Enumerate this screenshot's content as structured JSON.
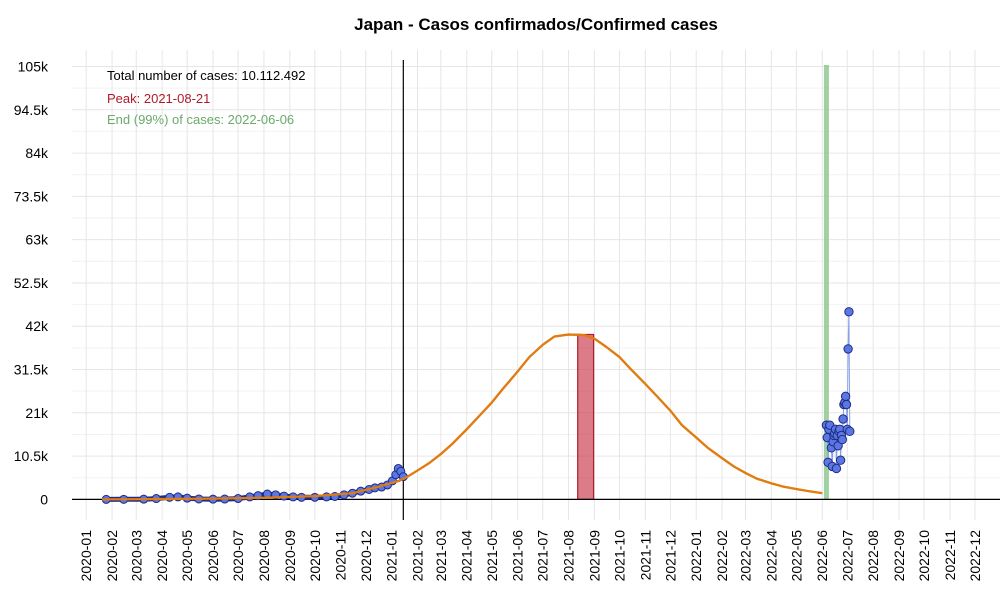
{
  "chart_data": {
    "type": "line",
    "title": "Japan - Casos confirmados/Confirmed cases",
    "xlabel": "",
    "ylabel": "",
    "x_axis": {
      "type": "date",
      "range": [
        "2019-12-15",
        "2022-12-31"
      ],
      "tick_labels": [
        "2020-01",
        "2020-02",
        "2020-03",
        "2020-04",
        "2020-05",
        "2020-06",
        "2020-07",
        "2020-08",
        "2020-09",
        "2020-10",
        "2020-11",
        "2020-12",
        "2021-01",
        "2021-02",
        "2021-03",
        "2021-04",
        "2021-05",
        "2021-06",
        "2021-07",
        "2021-08",
        "2021-09",
        "2021-10",
        "2021-11",
        "2021-12",
        "2022-01",
        "2022-02",
        "2022-03",
        "2022-04",
        "2022-05",
        "2022-06",
        "2022-07",
        "2022-08",
        "2022-09",
        "2022-10",
        "2022-11",
        "2022-12"
      ]
    },
    "y_axis": {
      "range": [
        -5000,
        109000
      ],
      "ticks": [
        0,
        10500,
        21000,
        31500,
        42000,
        52500,
        63000,
        73500,
        84000,
        94500,
        105000
      ],
      "tick_labels": [
        "0",
        "10.5k",
        "21k",
        "31.5k",
        "42k",
        "52.5k",
        "63k",
        "73.5k",
        "84k",
        "94.5k",
        "105k"
      ]
    },
    "grid": true,
    "annotations": {
      "total": "Total number of cases: 10.112.492",
      "peak": "Peak: 2021-08-21",
      "end": "End (99%) of cases: 2022-06-06"
    },
    "colors": {
      "fit_line": "#e07c10",
      "peak_band": "#cc4455",
      "end_line": "#8fc98f",
      "points_fill": "#5b78e0",
      "points_stroke": "#1f2a8a",
      "recent_line": "#8aa0e8",
      "today_line": "#000000",
      "grid": "#e6e6e6"
    },
    "today_date": "2021-01-15",
    "peak_band": {
      "start": "2021-08-12",
      "end": "2021-08-31",
      "value": 40000
    },
    "end_date": "2022-06-06",
    "fit_curve": {
      "x": [
        "2020-01-20",
        "2020-04-01",
        "2020-06-01",
        "2020-08-01",
        "2020-10-01",
        "2020-11-15",
        "2020-12-15",
        "2021-01-10",
        "2021-01-20",
        "2021-02-01",
        "2021-02-15",
        "2021-03-01",
        "2021-03-15",
        "2021-04-01",
        "2021-04-15",
        "2021-05-01",
        "2021-05-15",
        "2021-06-01",
        "2021-06-15",
        "2021-07-01",
        "2021-07-15",
        "2021-08-01",
        "2021-08-15",
        "2021-08-21",
        "2021-09-01",
        "2021-09-15",
        "2021-10-01",
        "2021-10-15",
        "2021-11-01",
        "2021-11-15",
        "2021-12-01",
        "2021-12-15",
        "2022-01-01",
        "2022-01-15",
        "2022-02-01",
        "2022-02-15",
        "2022-03-01",
        "2022-03-15",
        "2022-04-01",
        "2022-04-15",
        "2022-05-01",
        "2022-05-15",
        "2022-06-01"
      ],
      "y": [
        0,
        100,
        200,
        400,
        800,
        1500,
        3000,
        4500,
        5500,
        7000,
        8800,
        11000,
        13500,
        17000,
        20000,
        23500,
        27000,
        31000,
        34500,
        37500,
        39500,
        40000,
        39900,
        39800,
        39000,
        37000,
        34500,
        31500,
        28000,
        25000,
        21500,
        18000,
        15000,
        12500,
        10000,
        8000,
        6400,
        5000,
        3900,
        3100,
        2500,
        2000,
        1500
      ]
    },
    "historical_series": {
      "x": [
        "2020-01-25",
        "2020-02-15",
        "2020-03-10",
        "2020-03-25",
        "2020-04-10",
        "2020-04-20",
        "2020-05-01",
        "2020-05-15",
        "2020-06-01",
        "2020-06-15",
        "2020-07-01",
        "2020-07-15",
        "2020-07-25",
        "2020-08-05",
        "2020-08-15",
        "2020-08-25",
        "2020-09-05",
        "2020-09-15",
        "2020-10-01",
        "2020-10-15",
        "2020-10-25",
        "2020-11-05",
        "2020-11-15",
        "2020-11-25",
        "2020-12-05",
        "2020-12-12",
        "2020-12-20",
        "2020-12-27",
        "2021-01-02",
        "2021-01-06",
        "2021-01-09",
        "2021-01-12",
        "2021-01-15"
      ],
      "y": [
        0,
        10,
        50,
        200,
        500,
        600,
        300,
        100,
        50,
        80,
        200,
        600,
        900,
        1300,
        1100,
        800,
        600,
        500,
        500,
        600,
        700,
        1100,
        1500,
        2000,
        2400,
        2800,
        3000,
        3500,
        4500,
        6000,
        7500,
        6800,
        5500
      ]
    },
    "recent_series": {
      "x": [
        "2022-06-06",
        "2022-06-07",
        "2022-06-08",
        "2022-06-09",
        "2022-06-10",
        "2022-06-12",
        "2022-06-13",
        "2022-06-14",
        "2022-06-15",
        "2022-06-16",
        "2022-06-17",
        "2022-06-18",
        "2022-06-19",
        "2022-06-20",
        "2022-06-21",
        "2022-06-22",
        "2022-06-23",
        "2022-06-24",
        "2022-06-25",
        "2022-06-26",
        "2022-06-27",
        "2022-06-28",
        "2022-06-29",
        "2022-06-30",
        "2022-07-01",
        "2022-07-02",
        "2022-07-03",
        "2022-07-04"
      ],
      "y": [
        18000,
        15000,
        9000,
        17000,
        18000,
        12500,
        8000,
        14000,
        15500,
        16000,
        17000,
        7500,
        15500,
        13000,
        16500,
        17000,
        9500,
        15500,
        14500,
        19500,
        23000,
        23500,
        25000,
        23000,
        17000,
        36500,
        45500,
        16500
      ]
    }
  }
}
